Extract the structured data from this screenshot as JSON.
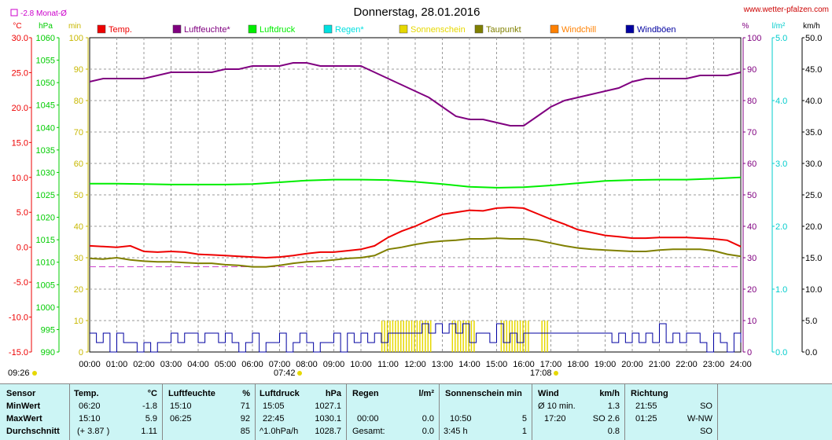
{
  "title": "Donnerstag, 28.01.2016",
  "website": "www.wetter-pfalzen.com",
  "monat_label": "-2.8 Monat-Ø",
  "units_left": [
    "°C",
    "hPa",
    "min"
  ],
  "units_right": [
    "%",
    "l/m²",
    "km/h"
  ],
  "legend": [
    {
      "name": "Temp.",
      "color": "#ee0000"
    },
    {
      "name": "Luftfeuchte*",
      "color": "#800080"
    },
    {
      "name": "Luftdruck",
      "color": "#00ee00"
    },
    {
      "name": "Regen*",
      "color": "#00e0e0"
    },
    {
      "name": "Sonnenschein",
      "color": "#e6d800"
    },
    {
      "name": "Taupunkt",
      "color": "#808000"
    },
    {
      "name": "Windchill",
      "color": "#ff8000"
    },
    {
      "name": "Windböen",
      "color": "#0000a0"
    }
  ],
  "sunrise": "07:42",
  "sunset": "17:08",
  "start_time": "09:26",
  "chart_data": {
    "type": "line",
    "x_ticks": [
      "00:00",
      "01:00",
      "02:00",
      "03:00",
      "04:00",
      "05:00",
      "06:00",
      "07:00",
      "08:00",
      "09:00",
      "10:00",
      "11:00",
      "12:00",
      "13:00",
      "14:00",
      "15:00",
      "16:00",
      "17:00",
      "18:00",
      "19:00",
      "20:00",
      "21:00",
      "22:00",
      "23:00",
      "24:00"
    ],
    "axes": {
      "temp_c": {
        "ticks": [
          "30.0",
          "25.0",
          "20.0",
          "15.0",
          "10.0",
          "5.0",
          "0.0",
          "-5.0",
          "-10.0",
          "-15.0"
        ],
        "range": [
          -15,
          30
        ],
        "color": "#ee0000"
      },
      "pressure_hpa": {
        "ticks": [
          "1060",
          "1055",
          "1050",
          "1045",
          "1040",
          "1035",
          "1030",
          "1025",
          "1020",
          "1015",
          "1010",
          "1005",
          "1000",
          "995",
          "990"
        ],
        "range": [
          990,
          1060
        ],
        "color": "#00cc00"
      },
      "sun_min": {
        "ticks": [
          "100",
          "90",
          "80",
          "70",
          "60",
          "50",
          "40",
          "30",
          "20",
          "10",
          "0"
        ],
        "range": [
          0,
          100
        ],
        "color": "#c8b800"
      },
      "humidity_pct": {
        "ticks": [
          "100",
          "90",
          "80",
          "70",
          "60",
          "50",
          "40",
          "30",
          "20",
          "10",
          "0"
        ],
        "range": [
          0,
          100
        ],
        "color": "#800080"
      },
      "rain_lm2": {
        "ticks": [
          "5.0",
          "4.0",
          "3.0",
          "2.0",
          "1.0",
          "0.0"
        ],
        "range": [
          0,
          5
        ],
        "color": "#00cccc"
      },
      "wind_kmh": {
        "ticks": [
          "50.0",
          "45.0",
          "40.0",
          "35.0",
          "30.0",
          "25.0",
          "20.0",
          "15.0",
          "10.0",
          "5.0",
          "0.0"
        ],
        "range": [
          0,
          50
        ],
        "color": "#000000"
      }
    },
    "monthly_mean_temp": -2.8,
    "series": [
      {
        "name": "Temp.",
        "axis": "temp_c",
        "color": "#ee0000",
        "x": [
          0,
          0.5,
          1,
          1.5,
          2,
          2.5,
          3,
          3.5,
          4,
          4.5,
          5,
          5.5,
          6,
          6.5,
          7,
          7.5,
          8,
          8.5,
          9,
          9.5,
          10,
          10.5,
          11,
          11.5,
          12,
          12.5,
          13,
          13.5,
          14,
          14.5,
          15,
          15.5,
          16,
          16.5,
          17,
          17.5,
          18,
          18.5,
          19,
          19.5,
          20,
          20.5,
          21,
          21.5,
          22,
          22.5,
          23,
          23.5,
          24
        ],
        "values": [
          0.2,
          0.1,
          0.0,
          0.2,
          -0.6,
          -0.7,
          -0.6,
          -0.7,
          -1.0,
          -1.1,
          -1.2,
          -1.3,
          -1.4,
          -1.5,
          -1.4,
          -1.2,
          -0.9,
          -0.7,
          -0.7,
          -0.5,
          -0.3,
          0.2,
          1.4,
          2.3,
          3.0,
          3.9,
          4.7,
          5.0,
          5.3,
          5.2,
          5.6,
          5.7,
          5.6,
          4.8,
          4.0,
          3.3,
          2.5,
          2.1,
          1.7,
          1.5,
          1.3,
          1.3,
          1.4,
          1.4,
          1.4,
          1.3,
          1.2,
          1.0,
          0.1
        ]
      },
      {
        "name": "Luftfeuchte*",
        "axis": "humidity_pct",
        "color": "#800080",
        "x": [
          0,
          0.5,
          1,
          1.5,
          2,
          2.5,
          3,
          3.5,
          4,
          4.5,
          5,
          5.5,
          6,
          6.5,
          7,
          7.5,
          8,
          8.5,
          9,
          9.5,
          10,
          10.5,
          11,
          11.5,
          12,
          12.5,
          13,
          13.5,
          14,
          14.5,
          15,
          15.5,
          16,
          16.5,
          17,
          17.5,
          18,
          18.5,
          19,
          19.5,
          20,
          20.5,
          21,
          21.5,
          22,
          22.5,
          23,
          23.5,
          24
        ],
        "values": [
          86,
          87,
          87,
          87,
          87,
          88,
          89,
          89,
          89,
          89,
          90,
          90,
          91,
          91,
          91,
          92,
          92,
          91,
          91,
          91,
          91,
          89,
          87,
          85,
          83,
          81,
          78,
          75,
          74,
          74,
          73,
          72,
          72,
          75,
          78,
          80,
          81,
          82,
          83,
          84,
          86,
          87,
          87,
          87,
          87,
          88,
          88,
          88,
          89
        ]
      },
      {
        "name": "Luftdruck",
        "axis": "pressure_hpa",
        "color": "#00ee00",
        "x": [
          0,
          1,
          2,
          3,
          4,
          5,
          6,
          7,
          8,
          9,
          10,
          11,
          12,
          13,
          14,
          15,
          16,
          17,
          18,
          19,
          20,
          21,
          22,
          23,
          24
        ],
        "values": [
          1027.5,
          1027.5,
          1027.4,
          1027.3,
          1027.3,
          1027.3,
          1027.4,
          1027.8,
          1028.2,
          1028.4,
          1028.4,
          1028.3,
          1027.9,
          1027.4,
          1026.8,
          1026.6,
          1026.7,
          1027.1,
          1027.6,
          1028.1,
          1028.3,
          1028.4,
          1028.4,
          1028.6,
          1028.9
        ]
      },
      {
        "name": "Taupunkt",
        "axis": "temp_c",
        "color": "#808000",
        "x": [
          0,
          0.5,
          1,
          1.5,
          2,
          2.5,
          3,
          3.5,
          4,
          4.5,
          5,
          5.5,
          6,
          6.5,
          7,
          7.5,
          8,
          8.5,
          9,
          9.5,
          10,
          10.5,
          11,
          11.5,
          12,
          12.5,
          13,
          13.5,
          14,
          14.5,
          15,
          15.5,
          16,
          16.5,
          17,
          17.5,
          18,
          18.5,
          19,
          19.5,
          20,
          20.5,
          21,
          21.5,
          22,
          22.5,
          23,
          23.5,
          24
        ],
        "values": [
          -1.6,
          -1.7,
          -1.5,
          -1.8,
          -2.0,
          -2.1,
          -2.1,
          -2.2,
          -2.3,
          -2.3,
          -2.5,
          -2.6,
          -2.8,
          -2.8,
          -2.6,
          -2.3,
          -2.1,
          -2.0,
          -1.8,
          -1.6,
          -1.5,
          -1.2,
          -0.3,
          0.0,
          0.4,
          0.7,
          0.9,
          1.0,
          1.2,
          1.2,
          1.3,
          1.2,
          1.2,
          1.0,
          0.6,
          0.2,
          -0.1,
          -0.3,
          -0.4,
          -0.5,
          -0.6,
          -0.6,
          -0.4,
          -0.3,
          -0.3,
          -0.3,
          -0.5,
          -1.0,
          -1.3
        ]
      },
      {
        "name": "Windböen",
        "axis": "wind_kmh",
        "color": "#0000a0",
        "x": [
          0,
          0.25,
          0.5,
          0.75,
          1,
          1.25,
          1.5,
          1.75,
          2,
          2.25,
          2.5,
          2.75,
          3,
          3.25,
          3.5,
          3.75,
          4,
          4.25,
          4.5,
          4.75,
          5,
          5.25,
          5.5,
          5.75,
          6,
          6.25,
          6.5,
          6.75,
          7,
          7.25,
          7.5,
          7.75,
          8,
          8.25,
          8.5,
          8.75,
          9,
          9.25,
          9.5,
          9.75,
          10,
          10.25,
          10.5,
          10.75,
          11,
          11.25,
          11.5,
          11.75,
          12,
          12.25,
          12.5,
          12.75,
          13,
          13.25,
          13.5,
          13.75,
          14,
          14.25,
          14.5,
          14.75,
          15,
          15.25,
          15.5,
          15.75,
          16,
          16.25,
          16.5,
          16.75,
          17,
          17.25,
          17.5,
          17.75,
          18,
          18.25,
          18.5,
          18.75,
          19,
          19.25,
          19.5,
          19.75,
          20,
          20.25,
          20.5,
          20.75,
          21,
          21.25,
          21.5,
          21.75,
          22,
          22.25,
          22.5,
          22.75,
          23,
          23.25,
          23.5,
          23.75,
          24
        ],
        "values": [
          3.0,
          1.5,
          3.0,
          0.0,
          3.0,
          1.5,
          1.5,
          0.0,
          1.5,
          0.0,
          1.5,
          1.5,
          3.0,
          1.5,
          3.0,
          3.0,
          1.5,
          3.0,
          3.0,
          1.5,
          3.0,
          1.5,
          0.0,
          1.5,
          3.0,
          0.0,
          1.5,
          1.5,
          3.0,
          0.0,
          1.5,
          3.0,
          1.5,
          0.0,
          1.5,
          1.5,
          3.0,
          0.0,
          3.0,
          1.5,
          3.0,
          1.5,
          3.0,
          1.5,
          3.0,
          3.0,
          3.0,
          3.0,
          3.0,
          4.5,
          3.0,
          4.5,
          3.0,
          4.5,
          3.0,
          4.5,
          1.5,
          3.0,
          3.0,
          1.5,
          4.5,
          1.5,
          3.0,
          1.5,
          3.0,
          3.0,
          3.0,
          3.0,
          3.0,
          3.0,
          3.0,
          3.0,
          3.0,
          3.0,
          3.0,
          3.0,
          3.0,
          1.5,
          3.0,
          1.5,
          3.0,
          1.5,
          3.0,
          1.5,
          4.5,
          1.5,
          3.0,
          1.5,
          3.0,
          3.0,
          1.5,
          0.0,
          3.0,
          1.5,
          0.0,
          3.0,
          1.5
        ]
      }
    ],
    "sunshine_minutes": {
      "x_start": 10.75,
      "x_end": 16.9,
      "axis": "sun_min"
    }
  },
  "table": {
    "header": {
      "sensor": "Sensor",
      "temp": "Temp.",
      "temp_unit": "°C",
      "hum": "Luftfeuchte",
      "hum_unit": "%",
      "press": "Luftdruck",
      "press_unit": "hPa",
      "rain": "Regen",
      "rain_unit": "l/m²",
      "sun": "Sonnenschein min",
      "wind": "Wind",
      "wind_unit": "km/h",
      "dir": "Richtung"
    },
    "rows": [
      {
        "label": "MinWert",
        "temp_time": "06:20",
        "temp_val": "-1.8",
        "hum_time": "15:10",
        "hum_val": "71",
        "press_time": "15:05",
        "press_val": "1027.1",
        "rain_time": "",
        "rain_val": "",
        "sun_time": "",
        "sun_val": "",
        "wind_time": "Ø 10 min.",
        "wind_val": "1.3",
        "dir_time": "21:55",
        "dir_val": "SO"
      },
      {
        "label": "MaxWert",
        "temp_time": "15:10",
        "temp_val": "5.9",
        "hum_time": "06:25",
        "hum_val": "92",
        "press_time": "22:45",
        "press_val": "1030.1",
        "rain_time": "00:00",
        "rain_val": "0.0",
        "sun_time": "10:50",
        "sun_val": "5",
        "wind_time": "17:20",
        "wind_val": "SO 2.6",
        "dir_time": "01:25",
        "dir_val": "W-NW"
      },
      {
        "label": "Durchschnitt",
        "temp_time": "(+ 3.87 )",
        "temp_val": "1.11",
        "hum_time": "",
        "hum_val": "85",
        "press_time": "^1.0hPa/h",
        "press_val": "1028.7",
        "rain_time": "Gesamt:",
        "rain_val": "0.0",
        "sun_time": "3:45 h",
        "sun_val": "1",
        "wind_time": "",
        "wind_val": "0.8",
        "dir_time": "",
        "dir_val": "SO"
      }
    ]
  }
}
